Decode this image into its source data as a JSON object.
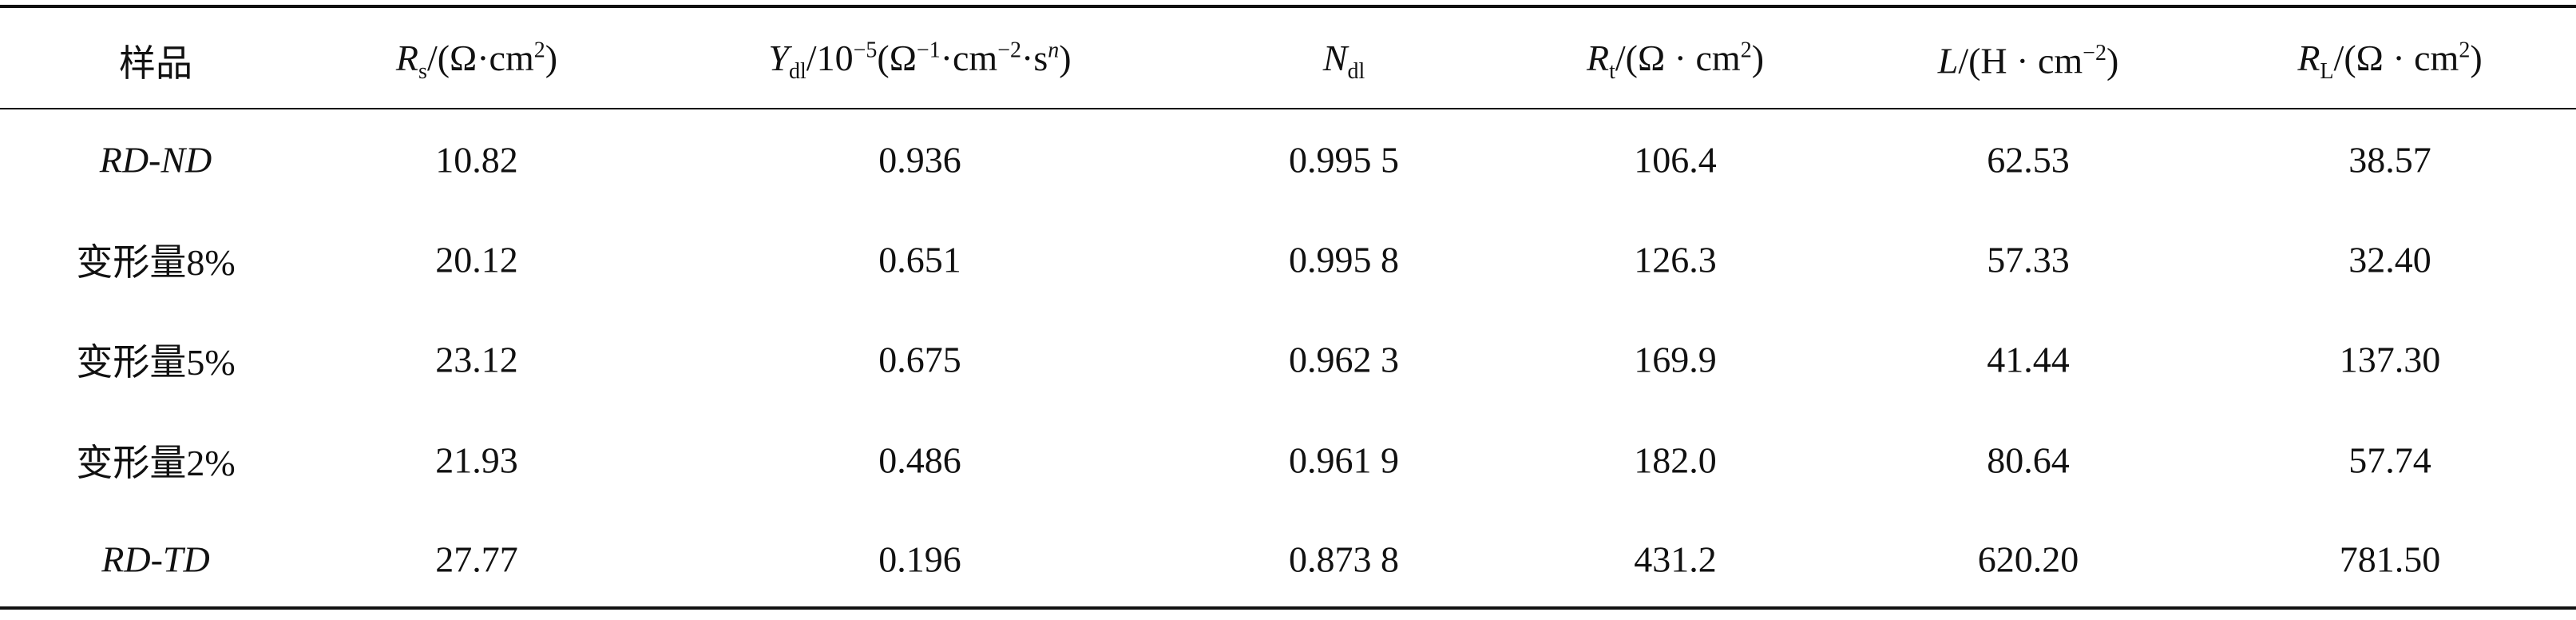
{
  "table": {
    "header": [
      [
        {
          "text": "样品"
        }
      ],
      [
        {
          "text": "R",
          "italic": true
        },
        {
          "text": "s",
          "sub": true
        },
        {
          "text": "/(Ω·cm"
        },
        {
          "text": "2",
          "sup": true
        },
        {
          "text": ")"
        }
      ],
      [
        {
          "text": "Y",
          "italic": true
        },
        {
          "text": "dl",
          "sub": true
        },
        {
          "text": "/10"
        },
        {
          "text": "−5",
          "sup": true
        },
        {
          "text": "(Ω"
        },
        {
          "text": "−1",
          "sup": true
        },
        {
          "text": "·cm"
        },
        {
          "text": "−2",
          "sup": true
        },
        {
          "text": "·s"
        },
        {
          "text": "n",
          "sup": true,
          "italic": true
        },
        {
          "text": ")"
        }
      ],
      [
        {
          "text": "N",
          "italic": true
        },
        {
          "text": "dl",
          "sub": true
        }
      ],
      [
        {
          "text": "R",
          "italic": true
        },
        {
          "text": "t",
          "sub": true
        },
        {
          "text": "/(Ω · cm"
        },
        {
          "text": "2",
          "sup": true
        },
        {
          "text": ")"
        }
      ],
      [
        {
          "text": "L",
          "italic": true
        },
        {
          "text": "/(H · cm"
        },
        {
          "text": "−2",
          "sup": true
        },
        {
          "text": ")"
        }
      ],
      [
        {
          "text": "R",
          "italic": true
        },
        {
          "text": "L",
          "sub": true
        },
        {
          "text": "/(Ω · cm"
        },
        {
          "text": "2",
          "sup": true
        },
        {
          "text": ")"
        }
      ]
    ],
    "italic_labels": [
      "RD-ND",
      "RD-TD"
    ],
    "rows": [
      [
        "RD-ND",
        "10.82",
        "0.936",
        "0.995 5",
        "106.4",
        "62.53",
        "38.57"
      ],
      [
        "变形量8%",
        "20.12",
        "0.651",
        "0.995 8",
        "126.3",
        "57.33",
        "32.40"
      ],
      [
        "变形量5%",
        "23.12",
        "0.675",
        "0.962 3",
        "169.9",
        "41.44",
        "137.30"
      ],
      [
        "变形量2%",
        "21.93",
        "0.486",
        "0.961 9",
        "182.0",
        "80.64",
        "57.74"
      ],
      [
        "RD-TD",
        "27.77",
        "0.196",
        "0.873 8",
        "431.2",
        "620.20",
        "781.50"
      ]
    ]
  }
}
